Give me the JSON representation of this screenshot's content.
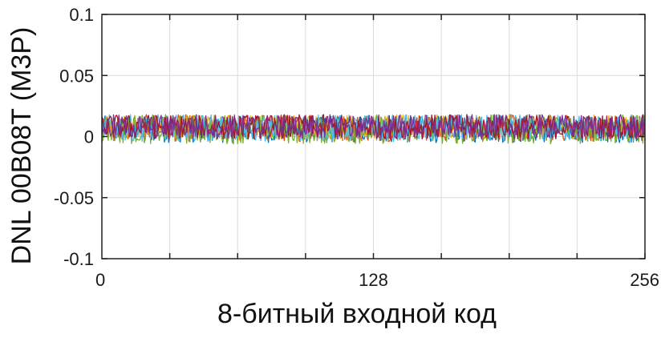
{
  "chart_data": {
    "type": "line",
    "xlabel": "8-битный входной код",
    "ylabel": "DNL 00B08T (M3P)",
    "xlim": [
      0,
      256
    ],
    "ylim": [
      -0.1,
      0.1
    ],
    "x_ticks": [
      0,
      128,
      256
    ],
    "x_tick_labels": [
      "0",
      "128",
      "256"
    ],
    "x_grid": [
      32,
      64,
      96,
      128,
      160,
      192,
      224,
      256
    ],
    "y_ticks": [
      -0.1,
      -0.05,
      0,
      0.05,
      0.1
    ],
    "y_tick_labels": [
      "-0.1",
      "-0.05",
      "0",
      "0.05",
      "0.1"
    ],
    "grid": true,
    "series_note": "multiple overlapping noisy traces",
    "series": [
      {
        "color": "#0072BD",
        "center": 0.006,
        "amplitude": 0.011
      },
      {
        "color": "#D95319",
        "center": 0.007,
        "amplitude": 0.011
      },
      {
        "color": "#EDB120",
        "center": 0.008,
        "amplitude": 0.01
      },
      {
        "color": "#77AC30",
        "center": 0.006,
        "amplitude": 0.012
      },
      {
        "color": "#4DBEEE",
        "center": 0.007,
        "amplitude": 0.011
      },
      {
        "color": "#A2142F",
        "center": 0.008,
        "amplitude": 0.01
      },
      {
        "color": "#7E2F8E",
        "center": 0.008,
        "amplitude": 0.01
      }
    ]
  }
}
